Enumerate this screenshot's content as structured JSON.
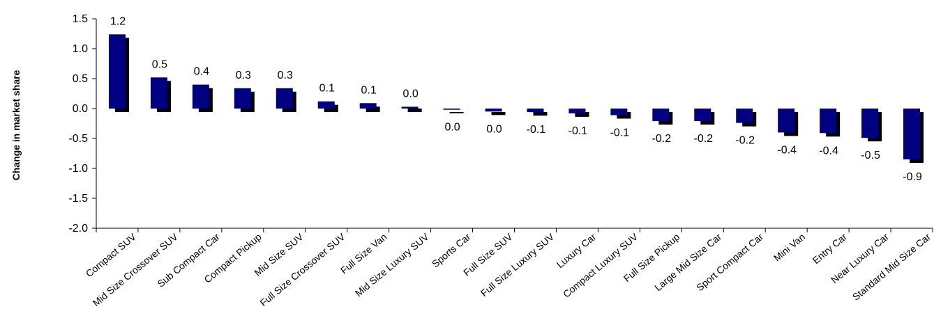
{
  "chart_data": {
    "type": "bar",
    "title": "",
    "xlabel": "",
    "ylabel": "Change in market share",
    "ylim": [
      -2.0,
      1.5
    ],
    "yticks": [
      1.5,
      1.0,
      0.5,
      0.0,
      -0.5,
      -1.0,
      -1.5,
      -2.0
    ],
    "grid": false,
    "legend": "none",
    "bar_color": "#000080",
    "shadow_color": "#000000",
    "categories": [
      "Compact SUV",
      "Mid Size Crossover SUV",
      "Sub Compact Car",
      "Compact Pickup",
      "Mid Size SUV",
      "Full Size Crossover SUV",
      "Full Size Van",
      "Mid Size Luxury SUV",
      "Sports Car",
      "Full Size SUV",
      "Full Size Luxury SUV",
      "Luxury Car",
      "Compact Luxury SUV",
      "Full Size Pickup",
      "Large Mid Size Car",
      "Sport Compact Car",
      "Mini Van",
      "Entry Car",
      "Near Luxury Car",
      "Standard Mid Size Car"
    ],
    "values": [
      1.24,
      0.52,
      0.4,
      0.34,
      0.34,
      0.12,
      0.09,
      0.03,
      -0.02,
      -0.05,
      -0.06,
      -0.08,
      -0.11,
      -0.21,
      -0.21,
      -0.24,
      -0.4,
      -0.41,
      -0.49,
      -0.85
    ],
    "data_labels": [
      "1.2",
      "0.5",
      "0.4",
      "0.3",
      "0.3",
      "0.1",
      "0.1",
      "0.0",
      "0.0",
      "0.0",
      "-0.1",
      "-0.1",
      "-0.1",
      "-0.2",
      "-0.2",
      "-0.2",
      "-0.4",
      "-0.4",
      "-0.5",
      "-0.9"
    ]
  }
}
